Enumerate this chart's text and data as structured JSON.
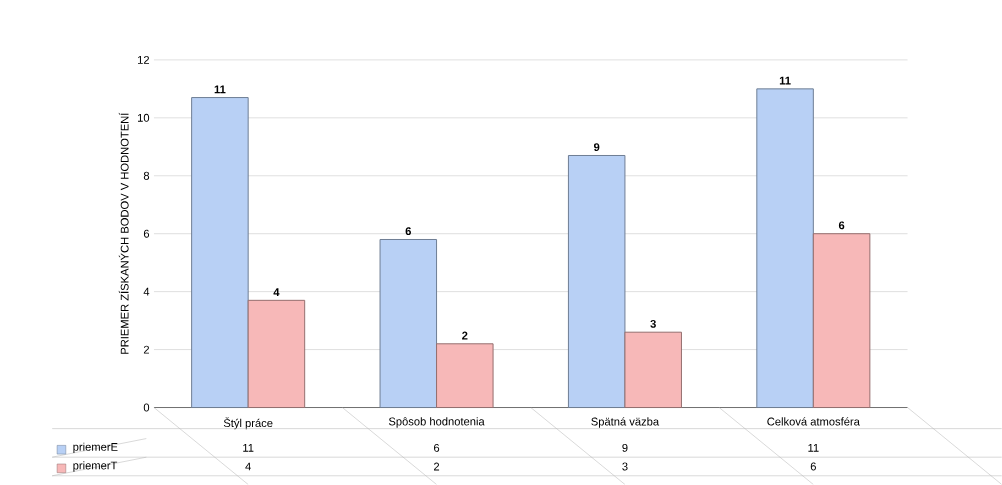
{
  "chart_data": {
    "type": "bar",
    "ylabel": "PRIEMER ZÍSKANÝCH BODOV V HODNOTENÍ",
    "categories": [
      "Štýl práce",
      "Spôsob hodnotenia",
      "Spätná väzba",
      "Celková atmosféra"
    ],
    "series": [
      {
        "name": "priemerE",
        "color": "#b8d0f5",
        "values": [
          10.7,
          5.8,
          8.7,
          11
        ],
        "value_labels": [
          "11",
          "6",
          "9",
          "11"
        ]
      },
      {
        "name": "priemerT",
        "color": "#f7b8b8",
        "values": [
          3.7,
          2.2,
          2.6,
          6
        ],
        "value_labels": [
          "4",
          "2",
          "3",
          "6"
        ]
      }
    ],
    "ylim": [
      0,
      12
    ],
    "yticks": [
      0,
      2,
      4,
      6,
      8,
      10,
      12
    ],
    "grid": "y",
    "legend": "bottom left"
  }
}
